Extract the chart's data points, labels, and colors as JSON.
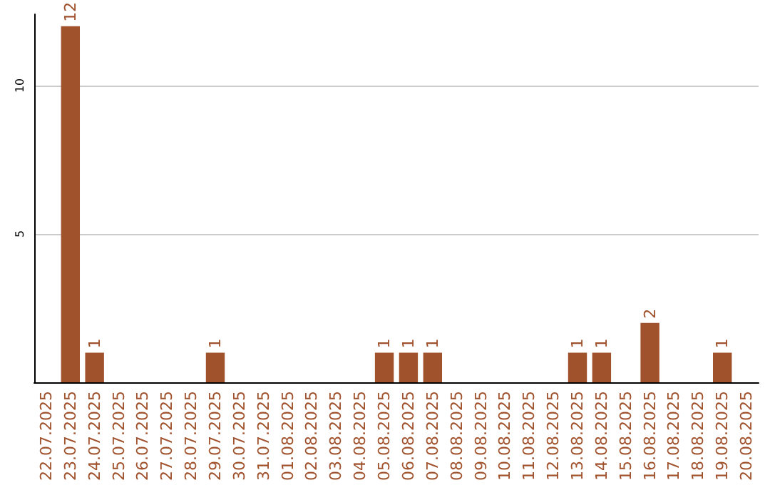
{
  "chart_data": {
    "type": "bar",
    "categories": [
      "22.07.2025",
      "23.07.2025",
      "24.07.2025",
      "25.07.2025",
      "26.07.2025",
      "27.07.2025",
      "28.07.2025",
      "29.07.2025",
      "30.07.2025",
      "31.07.2025",
      "01.08.2025",
      "02.08.2025",
      "03.08.2025",
      "04.08.2025",
      "05.08.2025",
      "06.08.2025",
      "07.08.2025",
      "08.08.2025",
      "09.08.2025",
      "10.08.2025",
      "11.08.2025",
      "12.08.2025",
      "13.08.2025",
      "14.08.2025",
      "15.08.2025",
      "16.08.2025",
      "17.08.2025",
      "18.08.2025",
      "19.08.2025",
      "20.08.2025"
    ],
    "values": [
      0,
      12,
      1,
      0,
      0,
      0,
      0,
      1,
      0,
      0,
      0,
      0,
      0,
      0,
      1,
      1,
      1,
      0,
      0,
      0,
      0,
      0,
      1,
      1,
      0,
      2,
      0,
      0,
      1,
      0
    ],
    "value_labels": [
      null,
      "12",
      "1",
      null,
      null,
      null,
      null,
      "1",
      null,
      null,
      null,
      null,
      null,
      null,
      "1",
      "1",
      "1",
      null,
      null,
      null,
      null,
      null,
      "1",
      "1",
      null,
      "2",
      null,
      null,
      "1",
      null
    ],
    "color": "#a0522d",
    "ylim": [
      0,
      12.4
    ],
    "yticks": [
      5,
      10
    ],
    "grid": "y"
  }
}
